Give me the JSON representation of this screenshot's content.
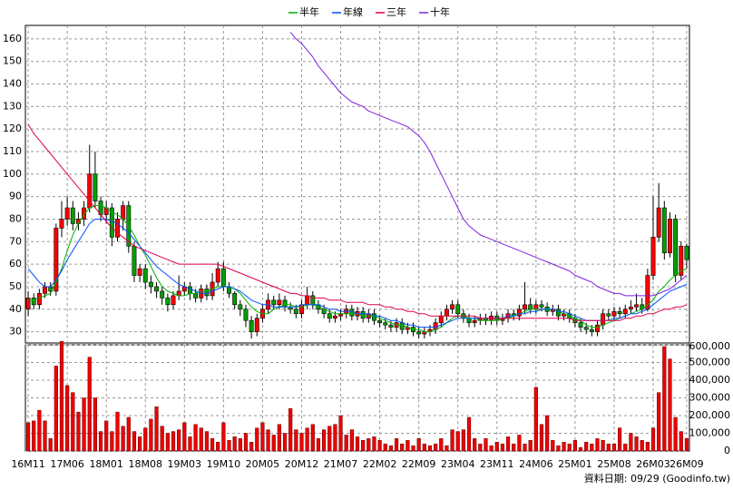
{
  "chart_data": {
    "type": "candlestick",
    "categories": [
      "16M11",
      null,
      null,
      null,
      null,
      null,
      null,
      "17M06",
      null,
      null,
      null,
      null,
      null,
      null,
      "18M01",
      null,
      null,
      null,
      null,
      null,
      null,
      "18M08",
      null,
      null,
      null,
      null,
      null,
      null,
      "19M03",
      null,
      null,
      null,
      null,
      null,
      null,
      "19M10",
      null,
      null,
      null,
      null,
      null,
      null,
      "20M05",
      null,
      null,
      null,
      null,
      null,
      null,
      "20M12",
      null,
      null,
      null,
      null,
      null,
      null,
      "21M07",
      null,
      null,
      null,
      null,
      null,
      null,
      "22M02",
      null,
      null,
      null,
      null,
      null,
      null,
      "22M09",
      null,
      null,
      null,
      null,
      null,
      null,
      "23M04",
      null,
      null,
      null,
      null,
      null,
      null,
      "23M11",
      null,
      null,
      null,
      null,
      null,
      null,
      "24M06",
      null,
      null,
      null,
      null,
      null,
      null,
      "25M01",
      null,
      null,
      null,
      null,
      null,
      null,
      "25M08",
      null,
      null,
      null,
      null,
      null,
      null,
      "26M03",
      null,
      null,
      null,
      null,
      null,
      "26M09"
    ],
    "open": [
      40,
      45,
      42,
      47,
      50,
      48,
      76,
      80,
      85,
      78,
      80,
      85,
      100,
      88,
      82,
      85,
      72,
      80,
      86,
      68,
      55,
      58,
      52,
      50,
      48,
      45,
      42,
      46,
      48,
      50,
      47,
      45,
      49,
      46,
      52,
      58,
      50,
      47,
      42,
      40,
      35,
      30,
      36,
      40,
      44,
      42,
      44,
      41,
      40,
      38,
      42,
      46,
      42,
      40,
      38,
      36,
      37,
      38,
      40,
      37,
      39,
      36,
      38,
      35,
      34,
      33,
      32,
      34,
      31,
      32,
      30,
      29,
      30,
      31,
      34,
      37,
      40,
      42,
      38,
      36,
      34,
      35,
      36,
      35,
      37,
      35,
      36,
      38,
      37,
      40,
      42,
      40,
      42,
      41,
      39,
      40,
      37,
      38,
      36,
      34,
      32,
      31,
      30,
      33,
      38,
      37,
      39,
      38,
      40,
      41,
      42,
      40,
      55,
      72,
      85,
      65,
      80,
      55,
      68
    ],
    "high": [
      48,
      47,
      49,
      52,
      52,
      78,
      88,
      90,
      88,
      83,
      88,
      113,
      110,
      90,
      88,
      87,
      83,
      88,
      88,
      70,
      60,
      60,
      55,
      52,
      50,
      47,
      48,
      55,
      52,
      52,
      49,
      51,
      51,
      56,
      61,
      61,
      52,
      48,
      44,
      42,
      37,
      38,
      42,
      47,
      46,
      47,
      46,
      43,
      42,
      44,
      50,
      48,
      44,
      42,
      40,
      39,
      40,
      42,
      42,
      41,
      41,
      40,
      40,
      37,
      36,
      35,
      36,
      36,
      34,
      34,
      32,
      32,
      33,
      36,
      39,
      42,
      44,
      44,
      40,
      38,
      37,
      38,
      38,
      39,
      39,
      38,
      40,
      40,
      42,
      52,
      45,
      44,
      44,
      43,
      42,
      42,
      40,
      40,
      38,
      36,
      34,
      33,
      35,
      40,
      40,
      41,
      41,
      42,
      44,
      47,
      45,
      58,
      90,
      96,
      88,
      83,
      82,
      70,
      69
    ],
    "low": [
      37,
      40,
      40,
      45,
      46,
      46,
      72,
      77,
      75,
      75,
      77,
      83,
      85,
      79,
      78,
      68,
      70,
      75,
      65,
      52,
      52,
      49,
      47,
      45,
      42,
      39,
      40,
      44,
      46,
      44,
      43,
      43,
      44,
      44,
      50,
      48,
      45,
      40,
      37,
      32,
      27,
      28,
      34,
      38,
      40,
      40,
      39,
      38,
      36,
      36,
      40,
      40,
      38,
      36,
      34,
      34,
      35,
      36,
      35,
      35,
      34,
      34,
      33,
      32,
      31,
      30,
      30,
      29,
      29,
      28,
      27,
      27,
      28,
      29,
      32,
      35,
      38,
      36,
      34,
      32,
      32,
      33,
      33,
      33,
      33,
      33,
      34,
      35,
      35,
      38,
      38,
      38,
      39,
      37,
      37,
      35,
      35,
      34,
      32,
      30,
      29,
      28,
      28,
      31,
      35,
      35,
      36,
      36,
      38,
      39,
      38,
      39,
      53,
      70,
      62,
      63,
      52,
      53,
      58
    ],
    "close": [
      45,
      42,
      47,
      50,
      48,
      76,
      80,
      85,
      78,
      80,
      85,
      100,
      88,
      82,
      85,
      72,
      80,
      86,
      68,
      55,
      58,
      52,
      50,
      48,
      45,
      42,
      46,
      48,
      50,
      47,
      45,
      49,
      46,
      52,
      58,
      50,
      47,
      42,
      40,
      35,
      30,
      36,
      40,
      44,
      42,
      44,
      41,
      40,
      38,
      42,
      46,
      42,
      40,
      38,
      36,
      37,
      38,
      40,
      37,
      39,
      36,
      38,
      35,
      34,
      33,
      32,
      34,
      31,
      32,
      30,
      29,
      30,
      31,
      34,
      37,
      40,
      42,
      38,
      36,
      34,
      35,
      36,
      35,
      37,
      35,
      36,
      38,
      37,
      40,
      42,
      40,
      42,
      41,
      39,
      40,
      37,
      38,
      36,
      34,
      32,
      31,
      30,
      33,
      38,
      37,
      39,
      38,
      40,
      41,
      42,
      40,
      55,
      72,
      85,
      65,
      80,
      55,
      68,
      62
    ],
    "up_color": "#ff0000",
    "down_color": "#00a000",
    "series": [
      {
        "name": "半年",
        "color": "#00b000",
        "values": [
          44,
          44,
          45,
          46,
          47,
          52,
          58,
          66,
          73,
          78,
          82,
          85,
          86,
          86,
          85,
          83,
          82,
          80,
          77,
          73,
          68,
          64,
          59,
          54,
          50,
          48,
          47,
          46,
          46,
          47,
          47,
          48,
          48,
          49,
          50,
          50,
          50,
          49,
          47,
          44,
          41,
          39,
          38,
          38,
          40,
          41,
          42,
          42,
          41,
          41,
          42,
          42,
          41,
          40,
          39,
          38,
          38,
          38,
          38,
          38,
          37,
          37,
          37,
          36,
          35,
          34,
          33,
          33,
          32,
          31,
          31,
          30,
          30,
          31,
          32,
          34,
          36,
          37,
          37,
          36,
          36,
          35,
          35,
          35,
          35,
          36,
          36,
          37,
          38,
          39,
          40,
          40,
          40,
          40,
          40,
          39,
          38,
          37,
          36,
          35,
          33,
          32,
          32,
          33,
          34,
          35,
          36,
          37,
          38,
          39,
          40,
          42,
          44,
          48,
          50,
          53,
          55,
          57,
          58
        ]
      },
      {
        "name": "年線",
        "color": "#0050ff",
        "values": [
          58,
          55,
          52,
          50,
          50,
          53,
          57,
          62,
          66,
          70,
          74,
          78,
          80,
          80,
          80,
          79,
          78,
          76,
          74,
          71,
          68,
          65,
          62,
          59,
          57,
          55,
          53,
          51,
          50,
          49,
          48,
          47,
          47,
          48,
          49,
          50,
          50,
          49,
          48,
          46,
          44,
          43,
          42,
          42,
          41,
          41,
          41,
          41,
          41,
          42,
          42,
          42,
          42,
          41,
          40,
          40,
          39,
          39,
          39,
          38,
          38,
          38,
          37,
          37,
          36,
          35,
          35,
          34,
          33,
          33,
          32,
          32,
          32,
          32,
          33,
          34,
          35,
          36,
          36,
          36,
          36,
          36,
          36,
          36,
          36,
          36,
          37,
          37,
          38,
          38,
          39,
          39,
          40,
          40,
          40,
          39,
          39,
          38,
          37,
          36,
          35,
          35,
          35,
          35,
          35,
          36,
          36,
          37,
          38,
          38,
          39,
          40,
          42,
          44,
          46,
          48,
          49,
          50,
          51
        ]
      },
      {
        "name": "三年",
        "color": "#e0004a",
        "values": [
          122,
          118,
          115,
          112,
          109,
          106,
          103,
          100,
          97,
          94,
          91,
          88,
          85,
          82,
          79,
          76,
          74,
          72,
          70,
          68,
          67,
          66,
          65,
          64,
          63,
          62,
          61,
          60,
          60,
          60,
          60,
          60,
          60,
          60,
          60,
          59,
          58,
          57,
          56,
          55,
          54,
          53,
          52,
          51,
          50,
          49,
          48,
          47,
          47,
          46,
          46,
          45,
          45,
          45,
          44,
          44,
          44,
          43,
          43,
          43,
          43,
          42,
          42,
          42,
          41,
          41,
          40,
          40,
          39,
          39,
          38,
          38,
          37,
          37,
          37,
          37,
          37,
          37,
          37,
          37,
          37,
          36,
          36,
          36,
          36,
          36,
          36,
          36,
          36,
          36,
          36,
          36,
          36,
          36,
          36,
          36,
          36,
          36,
          35,
          35,
          35,
          35,
          35,
          35,
          35,
          35,
          35,
          36,
          36,
          37,
          37,
          38,
          38,
          39,
          40,
          40,
          41,
          41,
          42
        ]
      },
      {
        "name": "十年",
        "color": "#8020e0",
        "values": [
          null,
          null,
          null,
          null,
          null,
          null,
          null,
          null,
          null,
          null,
          null,
          null,
          null,
          null,
          null,
          null,
          null,
          null,
          null,
          null,
          null,
          null,
          null,
          null,
          null,
          null,
          null,
          null,
          null,
          null,
          null,
          null,
          null,
          null,
          null,
          null,
          null,
          null,
          null,
          null,
          null,
          null,
          null,
          null,
          null,
          null,
          null,
          163,
          160,
          158,
          155,
          152,
          148,
          145,
          142,
          139,
          136,
          134,
          132,
          131,
          130,
          128,
          127,
          126,
          125,
          124,
          123,
          122,
          121,
          119,
          117,
          114,
          110,
          105,
          100,
          95,
          90,
          85,
          80,
          77,
          75,
          73,
          72,
          71,
          70,
          69,
          68,
          67,
          66,
          65,
          64,
          63,
          62,
          61,
          60,
          59,
          58,
          57,
          55,
          54,
          53,
          52,
          50,
          49,
          48,
          47,
          47,
          46,
          46,
          46,
          46,
          46,
          46,
          47,
          48,
          49,
          51,
          53,
          55
        ]
      }
    ],
    "ylim": [
      25,
      166
    ],
    "yticks": [
      30,
      40,
      50,
      60,
      70,
      80,
      90,
      100,
      110,
      120,
      130,
      140,
      150,
      160
    ],
    "grid": true,
    "volume": {
      "color": "#ee0000",
      "values": [
        160000,
        170000,
        230000,
        170000,
        70000,
        480000,
        620000,
        370000,
        330000,
        220000,
        300000,
        530000,
        300000,
        110000,
        170000,
        110000,
        220000,
        140000,
        190000,
        110000,
        80000,
        130000,
        180000,
        250000,
        140000,
        100000,
        110000,
        120000,
        160000,
        80000,
        150000,
        130000,
        110000,
        70000,
        50000,
        160000,
        60000,
        80000,
        70000,
        100000,
        50000,
        130000,
        160000,
        120000,
        90000,
        150000,
        100000,
        240000,
        120000,
        100000,
        130000,
        150000,
        70000,
        120000,
        140000,
        150000,
        200000,
        90000,
        120000,
        80000,
        60000,
        70000,
        80000,
        60000,
        40000,
        30000,
        70000,
        40000,
        60000,
        30000,
        70000,
        40000,
        30000,
        40000,
        70000,
        30000,
        120000,
        110000,
        120000,
        190000,
        70000,
        40000,
        70000,
        30000,
        50000,
        40000,
        80000,
        40000,
        90000,
        40000,
        60000,
        360000,
        150000,
        200000,
        60000,
        30000,
        50000,
        40000,
        60000,
        20000,
        50000,
        40000,
        70000,
        60000,
        40000,
        40000,
        130000,
        40000,
        100000,
        80000,
        60000,
        50000,
        130000,
        330000,
        590000,
        520000,
        190000,
        110000,
        70000
      ],
      "ylim": [
        0,
        600000
      ],
      "yticks": [
        0,
        {
          "value": 100000,
          "label": "100,000"
        },
        {
          "value": 200000,
          "label": "200,000"
        },
        {
          "value": 300000,
          "label": "300,000"
        },
        {
          "value": 400000,
          "label": "400,000"
        },
        {
          "value": 500000,
          "label": "500,000"
        },
        {
          "value": 600000,
          "label": "600,000"
        }
      ]
    },
    "note": "資料日期: 09/29 (Goodinfo.tw)"
  }
}
